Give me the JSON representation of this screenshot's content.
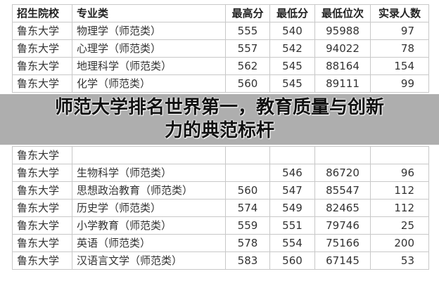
{
  "table": {
    "headers": [
      "招生院校",
      "专业类",
      "最高分",
      "最低分",
      "最低位次",
      "实录人数"
    ],
    "rows": [
      [
        "鲁东大学",
        "物理学（师范类）",
        "555",
        "540",
        "95988",
        "97"
      ],
      [
        "鲁东大学",
        "心理学（师范类）",
        "557",
        "542",
        "94022",
        "78"
      ],
      [
        "鲁东大学",
        "地理科学（师范类）",
        "562",
        "545",
        "88164",
        "154"
      ],
      [
        "鲁东大学",
        "化学（师范类）",
        "560",
        "545",
        "89111",
        "99"
      ],
      [
        "鲁东大学",
        "",
        "",
        "",
        "",
        ""
      ],
      [
        "鲁东大学",
        "生物科学（师范类）",
        "",
        "546",
        "86720",
        "96"
      ],
      [
        "鲁东大学",
        "思想政治教育（师范类）",
        "560",
        "547",
        "85547",
        "112"
      ],
      [
        "鲁东大学",
        "历史学（师范类）",
        "574",
        "549",
        "82465",
        "112"
      ],
      [
        "鲁东大学",
        "小学教育（师范类）",
        "559",
        "551",
        "79746",
        "25"
      ],
      [
        "鲁东大学",
        "英语（师范类）",
        "578",
        "554",
        "75166",
        "200"
      ],
      [
        "鲁东大学",
        "汉语言文学（师范类）",
        "583",
        "560",
        "67145",
        "53"
      ]
    ]
  },
  "banner": {
    "line1": "师范大学排名世界第一，教育质量与创新",
    "line2": "力的典范标杆"
  }
}
